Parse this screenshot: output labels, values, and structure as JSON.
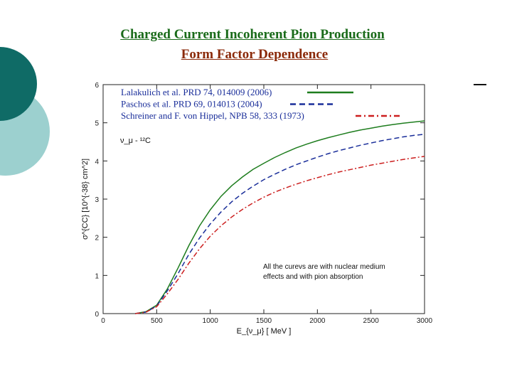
{
  "colors": {
    "title_line1": "#1a6b1a",
    "title_line2": "#8b2a0a",
    "deco_dark": "#0f6b66",
    "deco_light": "#9cd0cf",
    "series": [
      "#1e7d1e",
      "#1a2e9a",
      "#cc1f1f"
    ]
  },
  "slide": {
    "title_line1": "Charged Current Incoherent Pion Production",
    "title_line2": "Form Factor Dependence"
  },
  "chart_data": {
    "type": "line",
    "xlabel": "E_{ν_μ} [ MeV ]",
    "ylabel": "σ^{CC} [10^{-38} cm^2]",
    "reaction_label": "ν_μ - ¹²C",
    "xlim": [
      0,
      3000
    ],
    "ylim": [
      0,
      6
    ],
    "x_ticks": [
      0,
      500,
      1000,
      1500,
      2000,
      2500,
      3000
    ],
    "y_ticks": [
      0,
      1,
      2,
      3,
      4,
      5,
      6
    ],
    "grid": false,
    "legend_position": "top-left",
    "annotation": [
      "All the curevs are with  nuclear medium",
      "effects and with pion absorption"
    ],
    "x": [
      300,
      400,
      500,
      600,
      700,
      800,
      900,
      1000,
      1100,
      1200,
      1300,
      1400,
      1500,
      1600,
      1700,
      1800,
      1900,
      2000,
      2100,
      2200,
      2300,
      2400,
      2500,
      2600,
      2700,
      2800,
      2900,
      3000
    ],
    "series": [
      {
        "name": "Lalakulich et al. PRD 74, 014009 (2006)",
        "style": "solid",
        "values": [
          0.0,
          0.05,
          0.22,
          0.65,
          1.2,
          1.78,
          2.3,
          2.72,
          3.07,
          3.35,
          3.58,
          3.78,
          3.94,
          4.09,
          4.22,
          4.34,
          4.44,
          4.53,
          4.61,
          4.68,
          4.75,
          4.81,
          4.86,
          4.91,
          4.95,
          4.99,
          5.02,
          5.05
        ]
      },
      {
        "name": "Paschos et al. PRD 69, 014013 (2004)",
        "style": "dashed",
        "values": [
          0.0,
          0.04,
          0.2,
          0.6,
          1.05,
          1.55,
          1.98,
          2.35,
          2.66,
          2.93,
          3.15,
          3.34,
          3.51,
          3.65,
          3.78,
          3.9,
          4.0,
          4.1,
          4.19,
          4.27,
          4.34,
          4.41,
          4.47,
          4.53,
          4.58,
          4.63,
          4.67,
          4.7
        ]
      },
      {
        "name": "Schreiner and F. von Hippel, NPB 58, 333 (1973)",
        "style": "dashdot",
        "values": [
          0.0,
          0.04,
          0.18,
          0.52,
          0.9,
          1.32,
          1.7,
          2.03,
          2.3,
          2.53,
          2.73,
          2.9,
          3.05,
          3.18,
          3.29,
          3.39,
          3.48,
          3.56,
          3.64,
          3.71,
          3.77,
          3.83,
          3.89,
          3.94,
          3.99,
          4.04,
          4.08,
          4.12
        ]
      }
    ]
  }
}
